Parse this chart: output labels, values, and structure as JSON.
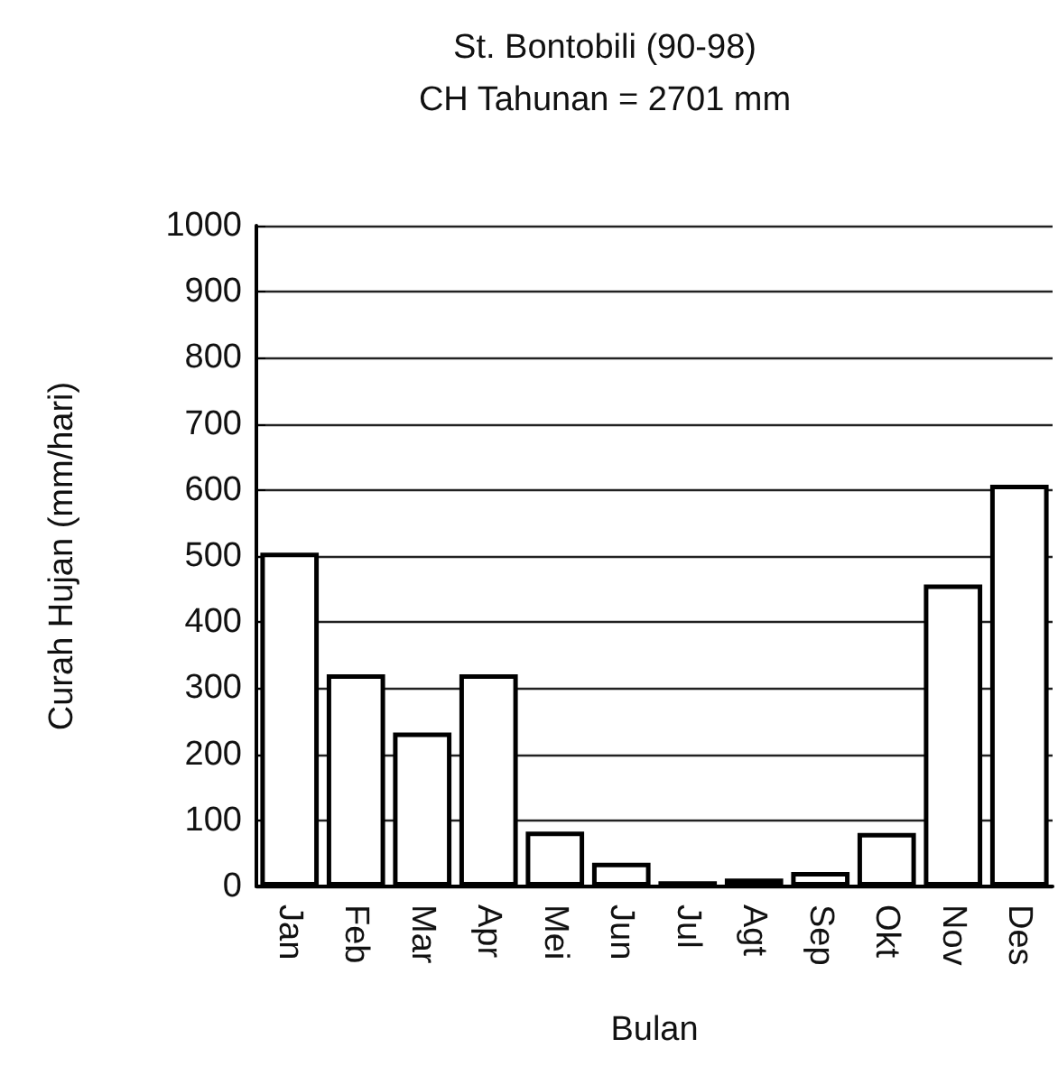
{
  "chart_data": {
    "type": "bar",
    "title": "St. Bontobili (90-98)",
    "subtitle": "CH Tahunan = 2701 mm",
    "xlabel": "Bulan",
    "ylabel": "Curah Hujan (mm/hari)",
    "categories": [
      "Jan",
      "Feb",
      "Mar",
      "Apr",
      "Mei",
      "Jun",
      "Jul",
      "Agt",
      "Sep",
      "Okt",
      "Nov",
      "Des"
    ],
    "values": [
      505,
      321,
      233,
      321,
      83,
      36,
      8,
      12,
      22,
      81,
      457,
      608
    ],
    "color": "#ffffff",
    "ylim": [
      0,
      1000
    ],
    "yticks": [
      0,
      100,
      200,
      300,
      400,
      500,
      600,
      700,
      800,
      900,
      1000
    ],
    "grid": "y"
  }
}
